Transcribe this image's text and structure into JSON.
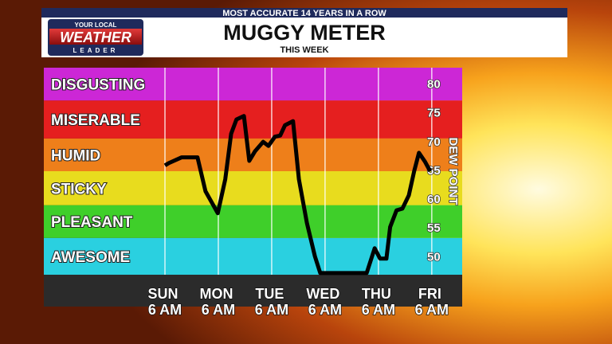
{
  "banner": "MOST ACCURATE 14 YEARS IN A ROW",
  "logo": {
    "top": "YOUR LOCAL",
    "main": "WEATHER",
    "bottom": "LEADER"
  },
  "chart_data": {
    "type": "line",
    "title": "MUGGY METER",
    "subtitle": "THIS WEEK",
    "y_label": "DEW POINT",
    "ylim": [
      47,
      83
    ],
    "yticks": [
      50,
      55,
      60,
      65,
      70,
      75,
      80
    ],
    "xlim": [
      -2.27,
      5.57
    ],
    "xticks": [
      {
        "value": 0,
        "label": "SUN 6 AM"
      },
      {
        "value": 1,
        "label": "MON 6 AM"
      },
      {
        "value": 2,
        "label": "TUE 6 AM"
      },
      {
        "value": 3,
        "label": "WED 6 AM"
      },
      {
        "value": 4,
        "label": "THU 6 AM"
      },
      {
        "value": 5,
        "label": "FRI 6 AM"
      }
    ],
    "grid": true,
    "bands": [
      {
        "name": "AWESOME",
        "from": 47,
        "to": 53.4,
        "color": "#2ad0e0"
      },
      {
        "name": "PLEASANT",
        "from": 53.4,
        "to": 59.1,
        "color": "#3fcf2a"
      },
      {
        "name": "STICKY",
        "from": 59.1,
        "to": 65,
        "color": "#e8dc1e"
      },
      {
        "name": "HUMID",
        "from": 65,
        "to": 70.7,
        "color": "#ee7f1a"
      },
      {
        "name": "MISERABLE",
        "from": 70.7,
        "to": 77.3,
        "color": "#e51f1f"
      },
      {
        "name": "DISGUSTING",
        "from": 77.3,
        "to": 83,
        "color": "#cc27d6"
      }
    ],
    "series": [
      {
        "name": "Dew point",
        "color": "#000000",
        "x": [
          0,
          0.07,
          0.31,
          0.61,
          0.76,
          0.99,
          1.13,
          1.24,
          1.34,
          1.48,
          1.58,
          1.69,
          1.84,
          1.94,
          2.06,
          2.16,
          2.25,
          2.4,
          2.51,
          2.66,
          2.81,
          2.91,
          3.78,
          3.93,
          4.03,
          4.15,
          4.22,
          4.34,
          4.45,
          4.57,
          4.67,
          4.76,
          4.87,
          4.97
        ],
        "values": [
          66.0,
          66.4,
          67.4,
          67.4,
          61.5,
          57.7,
          63.6,
          71.5,
          74,
          74.6,
          66.8,
          68.5,
          70.1,
          69.4,
          71,
          71.2,
          73,
          73.7,
          63.6,
          56,
          50.2,
          47.3,
          47.3,
          51.6,
          49.8,
          49.8,
          55.3,
          58.2,
          58.5,
          60.8,
          65,
          68.2,
          66.7,
          65
        ]
      }
    ]
  }
}
